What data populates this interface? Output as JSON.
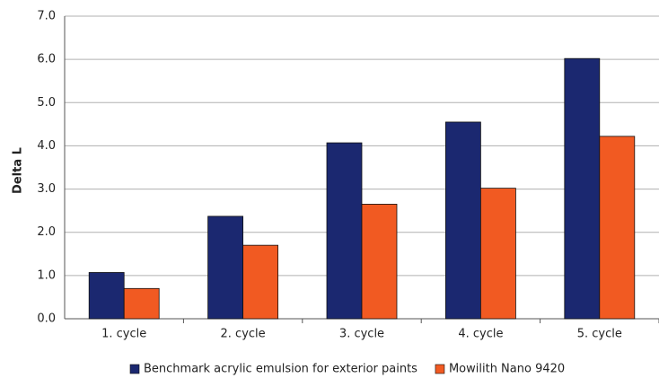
{
  "chart_data": {
    "type": "bar",
    "y_label": "Delta L",
    "categories": [
      "1. cycle",
      "2. cycle",
      "3. cycle",
      "4. cycle",
      "5. cycle"
    ],
    "series": [
      {
        "name": "Benchmark acrylic emulsion for exterior paints",
        "color": "#1b2870",
        "values": [
          1.07,
          2.37,
          4.07,
          4.55,
          6.02
        ]
      },
      {
        "name": "Mowilith Nano 9420",
        "color": "#f15a22",
        "values": [
          0.7,
          1.7,
          2.65,
          3.02,
          4.22
        ]
      }
    ],
    "ylim": [
      0,
      7
    ],
    "yticks": [
      {
        "value": 0,
        "label": "0.0"
      },
      {
        "value": 1,
        "label": "1.0"
      },
      {
        "value": 2,
        "label": "2.0"
      },
      {
        "value": 3,
        "label": "3.0"
      },
      {
        "value": 4,
        "label": "4.0"
      },
      {
        "value": 5,
        "label": "5.0"
      },
      {
        "value": 6,
        "label": "6.0"
      },
      {
        "value": 7,
        "label": "7.0"
      }
    ],
    "grid": true,
    "legend": "bottom"
  }
}
